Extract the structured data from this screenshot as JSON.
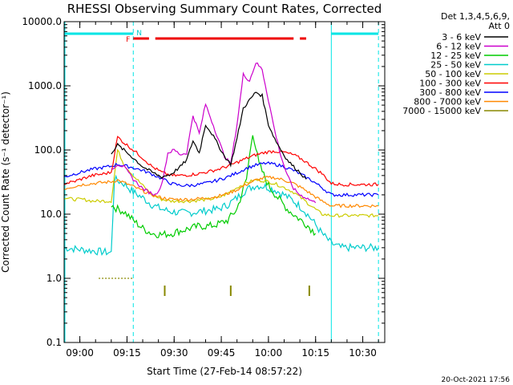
{
  "chart_data": {
    "type": "line",
    "title": "RHESSI Observing Summary Count Rates, Corrected",
    "xlabel": "Start Time (27-Feb-14 08:57:22)",
    "ylabel": "Corrected Count Rate (s⁻¹ detector⁻¹)",
    "y_scale": "log",
    "ylim": [
      0.1,
      10000
    ],
    "xlim": [
      "08:55",
      "10:37"
    ],
    "x_ticks": [
      "09:00",
      "09:15",
      "09:30",
      "09:45",
      "10:00",
      "10:15",
      "10:30"
    ],
    "y_ticks": [
      "0.1",
      "1.0",
      "10.0",
      "100.0",
      "1000.0",
      "10000.0"
    ],
    "legend_header": [
      "Det 1,3,4,5,6,9,",
      "Att 0"
    ],
    "legend_placement": "right",
    "timestamp": "20-Oct-2021 17:56",
    "markers": {
      "F_label": "F",
      "N_label": "N",
      "night_lines": [
        "09:17",
        "10:20",
        "10:35"
      ],
      "night_solid": [
        "10:20"
      ],
      "flare_segments": [
        [
          "09:17",
          "09:22"
        ],
        [
          "09:24",
          "10:08"
        ],
        [
          "10:10",
          "10:12"
        ]
      ],
      "night_segments": [
        [
          "08:55",
          "09:17"
        ],
        [
          "10:20",
          "10:35"
        ]
      ],
      "attenuator_ticks": [
        "09:27",
        "09:48",
        "10:13"
      ]
    },
    "series": [
      {
        "name": "3 - 6 keV",
        "color": "#000000",
        "x": [
          "09:10",
          "09:12",
          "09:14",
          "09:17",
          "09:20",
          "09:23",
          "09:26",
          "09:29",
          "09:32",
          "09:34",
          "09:36",
          "09:38",
          "09:40",
          "09:42",
          "09:44",
          "09:46",
          "09:48",
          "09:50",
          "09:52",
          "09:54",
          "09:56",
          "09:58",
          "10:00",
          "10:02",
          "10:04",
          "10:06",
          "10:08",
          "10:10",
          "10:12"
        ],
        "y": [
          90,
          120,
          100,
          75,
          55,
          45,
          38,
          42,
          55,
          70,
          140,
          90,
          250,
          180,
          120,
          80,
          60,
          150,
          450,
          600,
          800,
          700,
          250,
          150,
          100,
          70,
          55,
          45,
          35
        ]
      },
      {
        "name": "6 - 12 keV",
        "color": "#cc00cc",
        "x": [
          "09:10",
          "09:12",
          "09:14",
          "09:17",
          "09:20",
          "09:22",
          "09:24",
          "09:26",
          "09:28",
          "09:30",
          "09:32",
          "09:34",
          "09:36",
          "09:38",
          "09:40",
          "09:42",
          "09:44",
          "09:46",
          "09:48",
          "09:50",
          "09:52",
          "09:54",
          "09:56",
          "09:58",
          "10:00",
          "10:02",
          "10:04",
          "10:06",
          "10:08",
          "10:10",
          "10:12",
          "10:15"
        ],
        "y": [
          50,
          60,
          55,
          35,
          25,
          22,
          20,
          28,
          90,
          100,
          85,
          90,
          350,
          180,
          520,
          280,
          150,
          80,
          60,
          250,
          1500,
          1200,
          2300,
          1800,
          600,
          200,
          80,
          40,
          25,
          20,
          18,
          15
        ]
      },
      {
        "name": "12 - 25 keV",
        "color": "#00cc00",
        "x": [
          "09:10",
          "09:12",
          "09:14",
          "09:17",
          "09:20",
          "09:23",
          "09:26",
          "09:29",
          "09:32",
          "09:35",
          "09:38",
          "09:41",
          "09:44",
          "09:47",
          "09:50",
          "09:53",
          "09:55",
          "09:57",
          "10:00",
          "10:03",
          "10:06",
          "10:09",
          "10:12",
          "10:15"
        ],
        "y": [
          14,
          12,
          11,
          8,
          6,
          5,
          4.8,
          5,
          5.5,
          6,
          6.5,
          6.5,
          7,
          8,
          12,
          35,
          190,
          60,
          28,
          18,
          12,
          9,
          7,
          5
        ]
      },
      {
        "name": "25 - 50 keV",
        "color": "#00cccc",
        "x": [
          "08:55",
          "09:10",
          "09:11",
          "09:14",
          "09:17",
          "09:20",
          "09:23",
          "09:26",
          "09:29",
          "09:32",
          "09:35",
          "09:38",
          "09:41",
          "09:44",
          "09:47",
          "09:50",
          "09:53",
          "09:56",
          "09:59",
          "10:02",
          "10:05",
          "10:08",
          "10:11",
          "10:14",
          "10:17",
          "10:20",
          "10:23",
          "10:26",
          "10:29",
          "10:32",
          "10:35"
        ],
        "y": [
          3,
          2.5,
          35,
          30,
          22,
          18,
          14,
          12,
          11,
          10.5,
          10.5,
          11,
          11.5,
          12,
          14,
          18,
          24,
          28,
          27,
          24,
          20,
          16,
          12,
          8,
          5,
          3.5,
          3,
          3,
          3,
          3,
          3
        ]
      },
      {
        "name": "50 - 100 keV",
        "color": "#cccc00",
        "x": [
          "08:55",
          "08:58",
          "09:01",
          "09:04",
          "09:07",
          "09:10",
          "09:12",
          "09:14",
          "09:17",
          "09:20",
          "09:23",
          "09:26",
          "09:29",
          "09:32",
          "09:35",
          "09:38",
          "09:41",
          "09:44",
          "09:47",
          "09:50",
          "09:53",
          "09:56",
          "09:59",
          "10:02",
          "10:05",
          "10:08",
          "10:11",
          "10:14",
          "10:17",
          "10:20",
          "10:23",
          "10:26",
          "10:29",
          "10:32",
          "10:35"
        ],
        "y": [
          18,
          17,
          17,
          16,
          16,
          16,
          100,
          60,
          40,
          28,
          20,
          17,
          16,
          16,
          16,
          16.5,
          17,
          18,
          21,
          26,
          31,
          34,
          33,
          30,
          26,
          22,
          17,
          13,
          10,
          9.5,
          9.5,
          9.5,
          9.5,
          9.5,
          9.5
        ]
      },
      {
        "name": "100 - 300 keV",
        "color": "#ff0000",
        "x": [
          "08:55",
          "08:58",
          "09:01",
          "09:04",
          "09:07",
          "09:10",
          "09:12",
          "09:14",
          "09:17",
          "09:20",
          "09:23",
          "09:26",
          "09:29",
          "09:32",
          "09:35",
          "09:38",
          "09:41",
          "09:44",
          "09:47",
          "09:50",
          "09:53",
          "09:56",
          "09:59",
          "10:02",
          "10:05",
          "10:08",
          "10:11",
          "10:14",
          "10:17",
          "10:20",
          "10:23",
          "10:26",
          "10:29",
          "10:32",
          "10:35"
        ],
        "y": [
          30,
          32,
          36,
          40,
          42,
          45,
          160,
          130,
          100,
          75,
          55,
          45,
          40,
          40,
          41,
          43,
          46,
          50,
          56,
          64,
          74,
          84,
          92,
          96,
          92,
          84,
          70,
          55,
          43,
          30,
          29,
          29,
          29,
          29,
          29
        ]
      },
      {
        "name": "300 - 800 keV",
        "color": "#0000ff",
        "x": [
          "08:55",
          "08:58",
          "09:01",
          "09:04",
          "09:07",
          "09:10",
          "09:12",
          "09:14",
          "09:17",
          "09:20",
          "09:23",
          "09:26",
          "09:29",
          "09:32",
          "09:35",
          "09:38",
          "09:41",
          "09:44",
          "09:47",
          "09:50",
          "09:53",
          "09:56",
          "09:59",
          "10:02",
          "10:05",
          "10:08",
          "10:11",
          "10:14",
          "10:17",
          "10:20",
          "10:23",
          "10:26",
          "10:29",
          "10:32",
          "10:35"
        ],
        "y": [
          38,
          42,
          46,
          50,
          53,
          56,
          60,
          57,
          53,
          48,
          42,
          36,
          30,
          28,
          28,
          29,
          31,
          34,
          38,
          44,
          52,
          58,
          62,
          60,
          55,
          48,
          40,
          33,
          26,
          20,
          20,
          20,
          20,
          20,
          20
        ]
      },
      {
        "name": "800 - 7000 keV",
        "color": "#ff8800",
        "x": [
          "08:55",
          "08:58",
          "09:01",
          "09:04",
          "09:07",
          "09:10",
          "09:12",
          "09:14",
          "09:17",
          "09:20",
          "09:23",
          "09:26",
          "09:29",
          "09:32",
          "09:35",
          "09:38",
          "09:41",
          "09:44",
          "09:47",
          "09:50",
          "09:53",
          "09:56",
          "09:59",
          "10:02",
          "10:05",
          "10:08",
          "10:11",
          "10:14",
          "10:17",
          "10:20",
          "10:23",
          "10:26",
          "10:29",
          "10:32",
          "10:35"
        ],
        "y": [
          25,
          27,
          29,
          30,
          31,
          32,
          34,
          31,
          27,
          23,
          20,
          18,
          17,
          17,
          17,
          17.5,
          18,
          19,
          21,
          24,
          29,
          34,
          37,
          37,
          34,
          30,
          25,
          20,
          16,
          13.5,
          13.5,
          13.5,
          13.5,
          13.5,
          13.5
        ]
      },
      {
        "name": "7000 - 15000 keV",
        "color": "#888800",
        "x": [
          "09:06",
          "09:10",
          "09:14",
          "09:17"
        ],
        "y": [
          1.0,
          1.0,
          1.0,
          1.0
        ]
      }
    ]
  }
}
